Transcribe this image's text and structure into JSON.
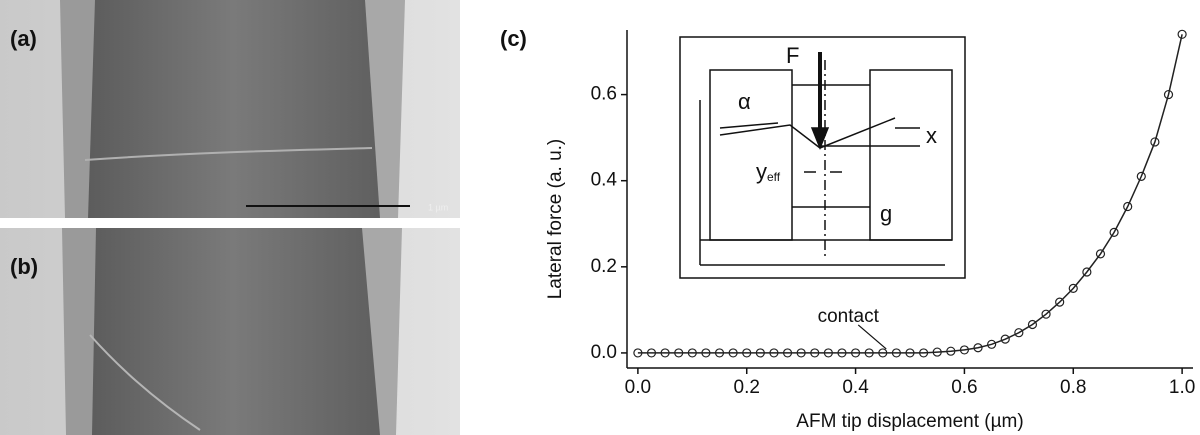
{
  "panels": {
    "a": "(a)",
    "b": "(b)",
    "c": "(c)"
  },
  "scale_bar": "1 µm",
  "inset": {
    "force": "F",
    "angle": "α",
    "deflection": "x",
    "offset": "y",
    "offset_subscript": "eff",
    "gap": "g"
  },
  "chart_data": {
    "type": "scatter",
    "xlabel": "AFM tip displacement (µm)",
    "ylabel": "Lateral force (a. u.)",
    "annotation": "contact",
    "annotation_x": 0.46,
    "x": [
      0,
      0.025,
      0.05,
      0.075,
      0.1,
      0.125,
      0.15,
      0.175,
      0.2,
      0.225,
      0.25,
      0.275,
      0.3,
      0.325,
      0.35,
      0.375,
      0.4,
      0.425,
      0.45,
      0.475,
      0.5,
      0.525,
      0.55,
      0.575,
      0.6,
      0.625,
      0.65,
      0.675,
      0.7,
      0.725,
      0.75,
      0.775,
      0.8,
      0.825,
      0.85,
      0.875,
      0.9,
      0.925,
      0.95,
      0.975,
      1.0
    ],
    "series": [
      {
        "values": [
          0,
          0,
          0,
          0,
          0,
          0,
          0,
          0,
          0,
          0,
          0,
          0,
          0,
          0,
          0,
          0,
          0,
          0,
          0,
          0,
          0,
          0,
          0.002,
          0.004,
          0.007,
          0.012,
          0.02,
          0.032,
          0.047,
          0.066,
          0.09,
          0.118,
          0.15,
          0.188,
          0.23,
          0.28,
          0.34,
          0.41,
          0.49,
          0.6,
          0.74
        ],
        "color": "#222222"
      }
    ],
    "fit_line": true,
    "xlim": [
      -0.02,
      1.02
    ],
    "ylim": [
      -0.035,
      0.75
    ],
    "xticks": [
      {
        "value": 0,
        "label": "0.0"
      },
      0.2,
      0.4,
      0.6,
      0.8,
      {
        "value": 1,
        "label": "1.0"
      }
    ],
    "yticks": [
      {
        "value": 0,
        "label": "0.0"
      },
      0.2,
      0.4,
      0.6
    ]
  }
}
